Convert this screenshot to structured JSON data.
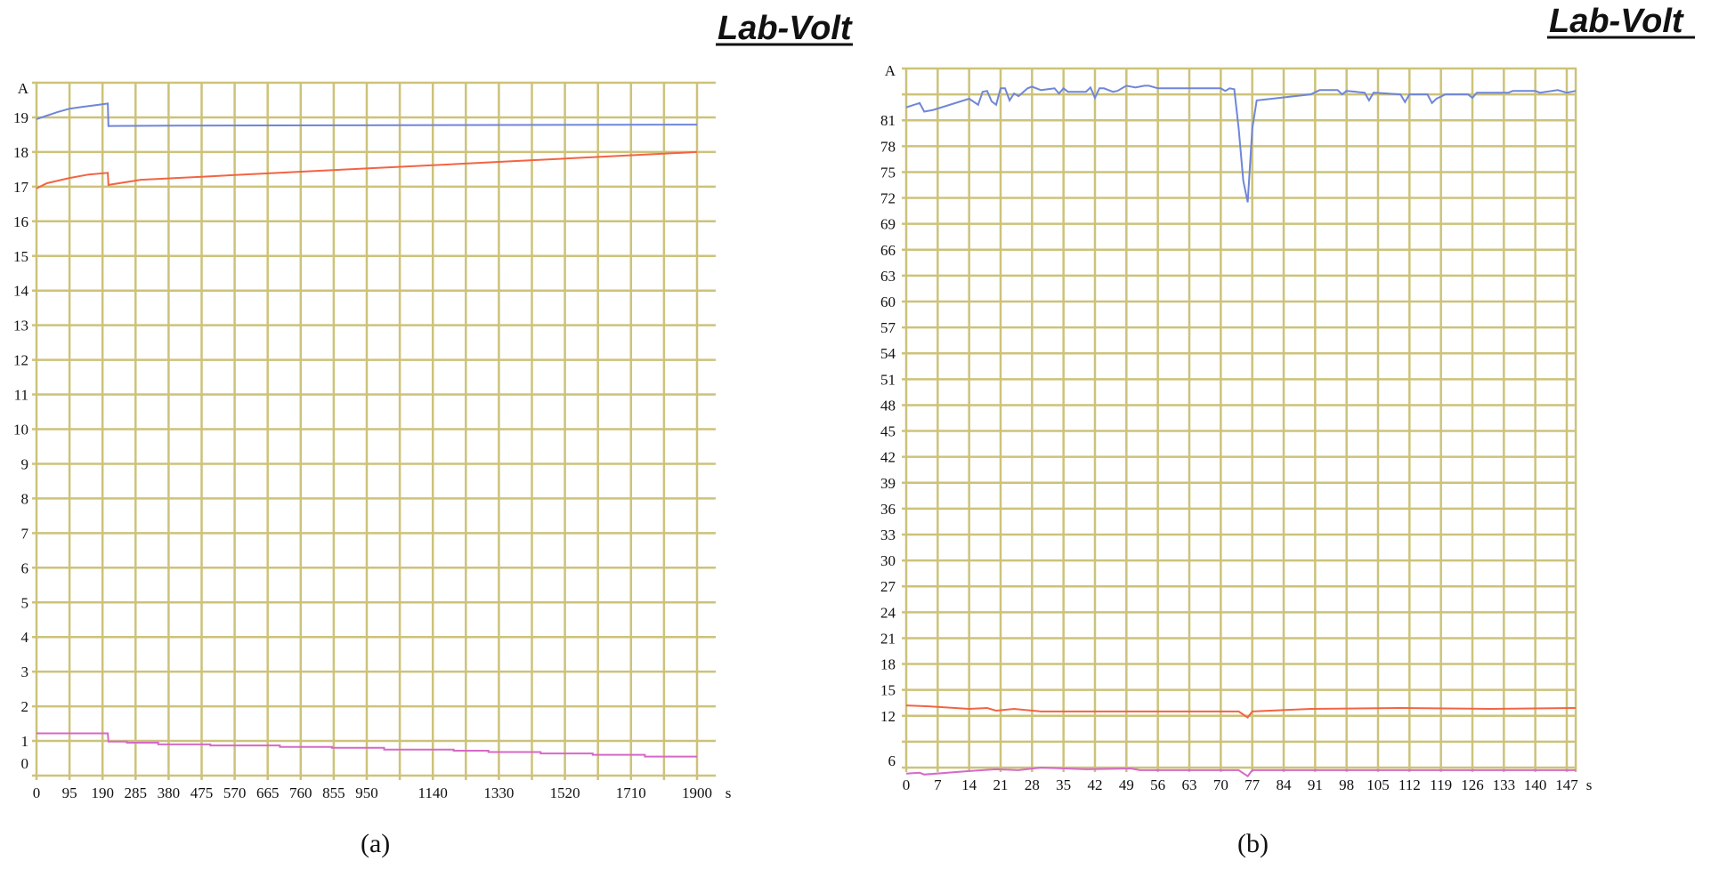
{
  "logo_text": "Lab-Volt",
  "colors": {
    "grid": "#cdc27a",
    "blue": "#6f86d8",
    "red": "#f26444",
    "magenta": "#d56ac6"
  },
  "chart_data": [
    {
      "type": "line",
      "caption": "(a)",
      "ylabel": "A",
      "xlabel": "s",
      "xlim": [
        0,
        1900
      ],
      "ylim": [
        0,
        20
      ],
      "x_gridlines": [
        0,
        95,
        190,
        285,
        380,
        475,
        570,
        665,
        760,
        855,
        950,
        1045,
        1140,
        1235,
        1330,
        1425,
        1520,
        1615,
        1710,
        1805,
        1900
      ],
      "x_tick_labels": [
        "0",
        "95",
        "190",
        "285",
        "380",
        "475",
        "570",
        "665",
        "760",
        "855",
        "950",
        "1140",
        "1330",
        "1520",
        "1710",
        "1900"
      ],
      "y_gridlines": [
        0,
        1,
        2,
        3,
        4,
        5,
        6,
        7,
        8,
        9,
        10,
        11,
        12,
        13,
        14,
        15,
        16,
        17,
        18,
        19,
        20
      ],
      "y_tick_labels": [
        "0",
        "1",
        "2",
        "3",
        "4",
        "5",
        "6",
        "7",
        "8",
        "9",
        "10",
        "11",
        "12",
        "13",
        "14",
        "15",
        "16",
        "17",
        "18",
        "19"
      ],
      "series": [
        {
          "name": "blue",
          "color": "#6f86d8",
          "points": [
            [
              0,
              18.95
            ],
            [
              30,
              19.05
            ],
            [
              60,
              19.15
            ],
            [
              95,
              19.25
            ],
            [
              130,
              19.3
            ],
            [
              170,
              19.35
            ],
            [
              205,
              19.4
            ],
            [
              207,
              18.75
            ],
            [
              400,
              18.76
            ],
            [
              900,
              18.77
            ],
            [
              1900,
              18.79
            ]
          ]
        },
        {
          "name": "red",
          "color": "#f26444",
          "points": [
            [
              0,
              16.95
            ],
            [
              30,
              17.1
            ],
            [
              95,
              17.25
            ],
            [
              150,
              17.35
            ],
            [
              205,
              17.4
            ],
            [
              207,
              17.05
            ],
            [
              300,
              17.2
            ],
            [
              500,
              17.3
            ],
            [
              800,
              17.45
            ],
            [
              1100,
              17.6
            ],
            [
              1400,
              17.75
            ],
            [
              1700,
              17.9
            ],
            [
              1900,
              18.0
            ]
          ]
        },
        {
          "name": "magenta",
          "color": "#d56ac6",
          "points": [
            [
              0,
              1.22
            ],
            [
              205,
              1.22
            ],
            [
              207,
              0.98
            ],
            [
              260,
              0.98
            ],
            [
              260,
              0.95
            ],
            [
              350,
              0.95
            ],
            [
              350,
              0.9
            ],
            [
              500,
              0.9
            ],
            [
              500,
              0.87
            ],
            [
              700,
              0.87
            ],
            [
              700,
              0.83
            ],
            [
              850,
              0.83
            ],
            [
              850,
              0.8
            ],
            [
              1000,
              0.8
            ],
            [
              1000,
              0.75
            ],
            [
              1200,
              0.75
            ],
            [
              1200,
              0.72
            ],
            [
              1300,
              0.72
            ],
            [
              1300,
              0.68
            ],
            [
              1450,
              0.68
            ],
            [
              1450,
              0.64
            ],
            [
              1600,
              0.64
            ],
            [
              1600,
              0.6
            ],
            [
              1750,
              0.6
            ],
            [
              1750,
              0.55
            ],
            [
              1900,
              0.55
            ]
          ]
        }
      ]
    },
    {
      "type": "line",
      "caption": "(b)",
      "ylabel": "A",
      "xlabel": "s",
      "xlim": [
        0,
        147
      ],
      "ylim": [
        6,
        87
      ],
      "x_gridlines": [
        0,
        7,
        14,
        21,
        28,
        35,
        42,
        49,
        56,
        63,
        70,
        77,
        84,
        91,
        98,
        105,
        112,
        119,
        126,
        133,
        140,
        147,
        149
      ],
      "x_tick_labels": [
        "0",
        "7",
        "14",
        "21",
        "28",
        "35",
        "42",
        "49",
        "56",
        "63",
        "70",
        "77",
        "84",
        "91",
        "98",
        "105",
        "112",
        "119",
        "126",
        "133",
        "140",
        "147"
      ],
      "y_gridlines": [
        6,
        9,
        12,
        15,
        18,
        21,
        24,
        27,
        30,
        33,
        36,
        39,
        42,
        45,
        48,
        51,
        54,
        57,
        60,
        63,
        66,
        69,
        72,
        75,
        78,
        81,
        84,
        87
      ],
      "y_tick_labels": [
        "6",
        "12",
        "15",
        "18",
        "21",
        "24",
        "27",
        "30",
        "33",
        "36",
        "39",
        "42",
        "45",
        "48",
        "51",
        "54",
        "57",
        "60",
        "63",
        "66",
        "69",
        "72",
        "75",
        "78",
        "81"
      ],
      "series": [
        {
          "name": "blue",
          "color": "#6f86d8",
          "points": [
            [
              0,
              82.5
            ],
            [
              3,
              83
            ],
            [
              4,
              82
            ],
            [
              6,
              82.2
            ],
            [
              14,
              83.5
            ],
            [
              16,
              82.8
            ],
            [
              17,
              84.3
            ],
            [
              18,
              84.4
            ],
            [
              19,
              83.2
            ],
            [
              20,
              82.8
            ],
            [
              21,
              84.7
            ],
            [
              22,
              84.7
            ],
            [
              23,
              83.3
            ],
            [
              24,
              84.1
            ],
            [
              25,
              83.8
            ],
            [
              27,
              84.7
            ],
            [
              28,
              84.9
            ],
            [
              30,
              84.5
            ],
            [
              33,
              84.7
            ],
            [
              34,
              84.1
            ],
            [
              35,
              84.7
            ],
            [
              36,
              84.3
            ],
            [
              40,
              84.3
            ],
            [
              41,
              84.8
            ],
            [
              42,
              83.6
            ],
            [
              43,
              84.7
            ],
            [
              44,
              84.7
            ],
            [
              46,
              84.3
            ],
            [
              47,
              84.4
            ],
            [
              49,
              85
            ],
            [
              51,
              84.8
            ],
            [
              53,
              85
            ],
            [
              54,
              85
            ],
            [
              56,
              84.7
            ],
            [
              70,
              84.7
            ],
            [
              71,
              84.4
            ],
            [
              72,
              84.7
            ],
            [
              73,
              84.6
            ],
            [
              74,
              80
            ],
            [
              75,
              74
            ],
            [
              76,
              71.5
            ],
            [
              77,
              80
            ],
            [
              78,
              83.3
            ],
            [
              90,
              84
            ],
            [
              92,
              84.5
            ],
            [
              96,
              84.5
            ],
            [
              97,
              84
            ],
            [
              98,
              84.4
            ],
            [
              102,
              84.2
            ],
            [
              103,
              83.3
            ],
            [
              104,
              84.2
            ],
            [
              110,
              84
            ],
            [
              111,
              83.1
            ],
            [
              112,
              84
            ],
            [
              116,
              84
            ],
            [
              117,
              83
            ],
            [
              118,
              83.5
            ],
            [
              120,
              84
            ],
            [
              125,
              84
            ],
            [
              126,
              83.6
            ],
            [
              127,
              84.2
            ],
            [
              134,
              84.2
            ],
            [
              135,
              84.4
            ],
            [
              140,
              84.4
            ],
            [
              141,
              84.2
            ],
            [
              145,
              84.5
            ],
            [
              147,
              84.2
            ],
            [
              149,
              84.4
            ]
          ]
        },
        {
          "name": "red",
          "color": "#f26444",
          "points": [
            [
              0,
              13.2
            ],
            [
              5,
              13.1
            ],
            [
              14,
              12.8
            ],
            [
              18,
              12.9
            ],
            [
              20,
              12.6
            ],
            [
              24,
              12.8
            ],
            [
              30,
              12.5
            ],
            [
              60,
              12.5
            ],
            [
              74,
              12.5
            ],
            [
              76,
              11.8
            ],
            [
              77,
              12.5
            ],
            [
              90,
              12.8
            ],
            [
              110,
              12.9
            ],
            [
              130,
              12.8
            ],
            [
              149,
              12.9
            ]
          ]
        },
        {
          "name": "magenta",
          "color": "#d56ac6",
          "points": [
            [
              0,
              5.3
            ],
            [
              3,
              5.4
            ],
            [
              4,
              5.2
            ],
            [
              14,
              5.6
            ],
            [
              20,
              5.8
            ],
            [
              25,
              5.7
            ],
            [
              30,
              6.0
            ],
            [
              40,
              5.8
            ],
            [
              50,
              5.9
            ],
            [
              52,
              5.7
            ],
            [
              74,
              5.7
            ],
            [
              76,
              5.0
            ],
            [
              77,
              5.7
            ],
            [
              149,
              5.7
            ]
          ]
        }
      ]
    }
  ]
}
